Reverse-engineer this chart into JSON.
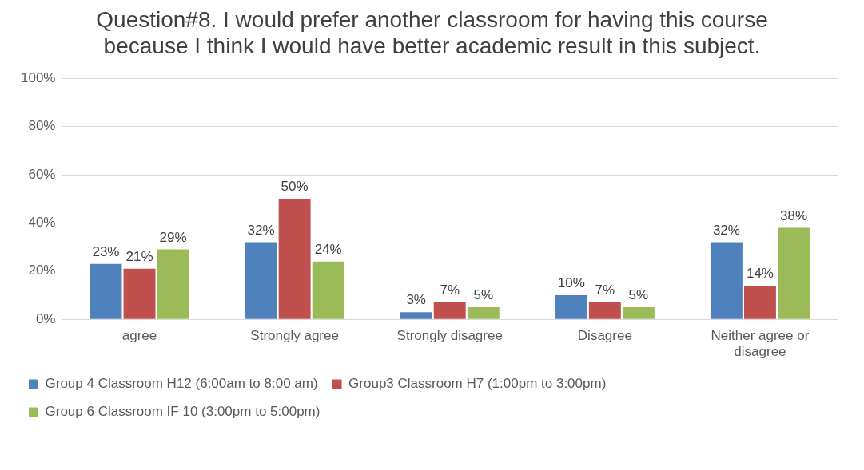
{
  "chart_data": {
    "type": "bar",
    "title": "Question#8. I would prefer another classroom for having this course because I think I would have better academic result in this subject.",
    "categories": [
      "agree",
      "Strongly agree",
      "Strongly disagree",
      "Disagree",
      "Neither agree or disagree"
    ],
    "series": [
      {
        "name": "Group 4 Classroom H12 (6:00am to 8:00 am)",
        "color": "#4f81bd",
        "values": [
          23,
          32,
          3,
          10,
          32
        ],
        "value_labels": [
          "23%",
          "32%",
          "3%",
          "10%",
          "32%"
        ]
      },
      {
        "name": "Group3 Classroom H7 (1:00pm to 3:00pm)",
        "color": "#c0504d",
        "values": [
          21,
          50,
          7,
          7,
          14
        ],
        "value_labels": [
          "21%",
          "50%",
          "7%",
          "7%",
          "14%"
        ]
      },
      {
        "name": "Group 6 Classroom IF 10 (3:00pm to 5:00pm)",
        "color": "#9bbb59",
        "values": [
          29,
          24,
          5,
          5,
          38
        ],
        "value_labels": [
          "29%",
          "24%",
          "5%",
          "5%",
          "38%"
        ]
      }
    ],
    "ylim": [
      0,
      100
    ],
    "yticks": [
      {
        "value": 0,
        "label": "0%"
      },
      {
        "value": 20,
        "label": "20%"
      },
      {
        "value": 40,
        "label": "40%"
      },
      {
        "value": 60,
        "label": "60%"
      },
      {
        "value": 80,
        "label": "80%"
      },
      {
        "value": 100,
        "label": "100%"
      }
    ],
    "grid": "y",
    "legend": "bottom"
  }
}
